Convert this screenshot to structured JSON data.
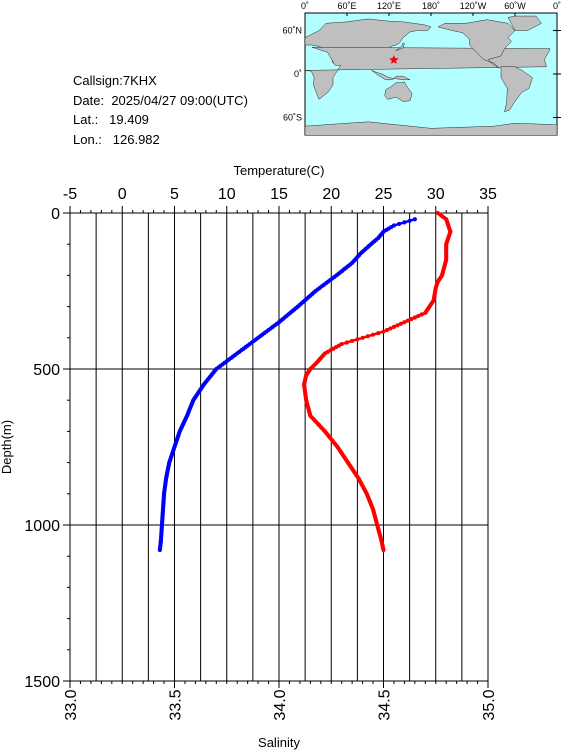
{
  "station": {
    "callsign_text": "Callsign:7KHX",
    "date_label": "Date:",
    "date_value": "2025/04/27 09:00(UTC)",
    "lat_label": "Lat.:",
    "lat_value": "19.409",
    "lon_label": "Lon.:",
    "lon_value": "126.982"
  },
  "map": {
    "ocean_color": "#b3ffff",
    "land_color": "#bfbfbf",
    "marker_color": "#ff0000",
    "marker_icon": "red-star-icon",
    "marker_lon": 126.982,
    "marker_lat": 19.409,
    "lon_labels": [
      "0˚",
      "60˚E",
      "120˚E",
      "180˚",
      "120˚W",
      "60˚W",
      "0˚"
    ],
    "lat_labels": [
      "60˚N",
      "0˚",
      "60˚S"
    ]
  },
  "chart_data": {
    "type": "line",
    "grid": true,
    "top_axis": {
      "label": "Temperature(C)",
      "range": [
        -5,
        35
      ],
      "ticks": [
        "-5",
        "0",
        "5",
        "10",
        "15",
        "20",
        "25",
        "30",
        "35"
      ]
    },
    "bottom_axis": {
      "label": "Salinity",
      "range": [
        33.0,
        35.0
      ],
      "ticks": [
        "33.0",
        "33.5",
        "34.0",
        "34.5",
        "35.0"
      ]
    },
    "y_axis": {
      "label": "Depth(m)",
      "range": [
        0,
        1500
      ],
      "inverted": true,
      "ticks": [
        "0",
        "500",
        "1000",
        "1500"
      ]
    },
    "series": [
      {
        "axis": "temperature",
        "color": "#0000ff",
        "depth": [
          20,
          40,
          60,
          80,
          100,
          130,
          160,
          200,
          250,
          300,
          350,
          400,
          450,
          500,
          550,
          600,
          650,
          700,
          750,
          800,
          850,
          900,
          950,
          1000,
          1050,
          1080
        ],
        "values": [
          28.0,
          26.0,
          25.0,
          24.5,
          23.8,
          22.8,
          22.0,
          20.5,
          18.5,
          16.8,
          15.0,
          13.0,
          11.0,
          9.0,
          7.8,
          6.8,
          6.2,
          5.5,
          5.0,
          4.5,
          4.2,
          4.0,
          3.9,
          3.8,
          3.7,
          3.6
        ]
      },
      {
        "axis": "salinity",
        "color": "#ff0000",
        "depth": [
          0,
          20,
          40,
          60,
          80,
          100,
          150,
          200,
          220,
          240,
          280,
          320,
          350,
          380,
          400,
          420,
          450,
          480,
          500,
          520,
          550,
          600,
          650,
          700,
          750,
          800,
          850,
          900,
          950,
          1000,
          1050,
          1080
        ],
        "values": [
          34.76,
          34.8,
          34.81,
          34.82,
          34.81,
          34.8,
          34.8,
          34.78,
          34.76,
          34.75,
          34.74,
          34.7,
          34.6,
          34.5,
          34.4,
          34.3,
          34.22,
          34.18,
          34.15,
          34.13,
          34.12,
          34.13,
          34.15,
          34.22,
          34.28,
          34.33,
          34.38,
          34.42,
          34.45,
          34.47,
          34.49,
          34.5
        ]
      }
    ]
  }
}
